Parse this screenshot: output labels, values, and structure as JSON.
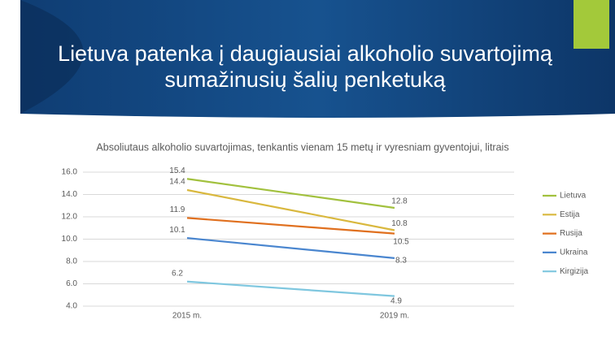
{
  "chart_data": {
    "type": "line",
    "title": "Lietuva patenka į daugiausiai alkoholio suvartojimą sumažinusių šalių penketuką",
    "subtitle": "Absoliutaus alkoholio suvartojimas, tenkantis vienam 15 metų ir vyresniam gyventojui, litrais",
    "categories": [
      "2015 m.",
      "2019 m."
    ],
    "series": [
      {
        "name": "Lietuva",
        "color": "#a2c13e",
        "values": [
          15.4,
          12.8
        ]
      },
      {
        "name": "Estija",
        "color": "#d9b83e",
        "values": [
          14.4,
          10.8
        ]
      },
      {
        "name": "Rusija",
        "color": "#e0701f",
        "values": [
          11.9,
          10.5
        ]
      },
      {
        "name": "Ukraina",
        "color": "#4a86cf",
        "values": [
          10.1,
          8.3
        ]
      },
      {
        "name": "Kirgizija",
        "color": "#7fc7df",
        "values": [
          6.2,
          4.9
        ]
      }
    ],
    "ylim": [
      4,
      16
    ],
    "yticks": [
      {
        "value": 4,
        "label": "4.0"
      },
      {
        "value": 6,
        "label": "6.0"
      },
      {
        "value": 8,
        "label": "8.0"
      },
      {
        "value": 10,
        "label": "10.0"
      },
      {
        "value": 12,
        "label": "12.0"
      },
      {
        "value": 14,
        "label": "14.0"
      },
      {
        "value": 16,
        "label": "16.0"
      }
    ],
    "grid": true,
    "legend": "right"
  }
}
